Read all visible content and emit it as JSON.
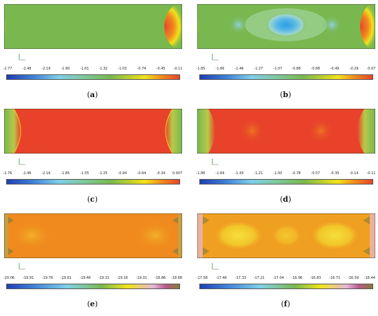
{
  "panels": [
    {
      "letter": "a",
      "ticks": [
        "-2.77",
        "-2.48",
        "-2.19",
        "-1.90",
        "-1.61",
        "-1.32",
        "-1.03",
        "-0.74",
        "-0.45",
        "-0.11"
      ],
      "colorbar": "rainbow"
    },
    {
      "letter": "b",
      "ticks": [
        "-1.85",
        "-1.66",
        "-1.46",
        "-1.27",
        "-1.07",
        "-0.88",
        "-0.68",
        "-0.49",
        "-0.29",
        "-0.07"
      ],
      "colorbar": "rainbow"
    },
    {
      "letter": "c",
      "ticks": [
        "-2.76",
        "-2.46",
        "-2.16",
        "-1.85",
        "-1.55",
        "-1.25",
        "-0.94",
        "-0.64",
        "-0.34",
        "0.007"
      ],
      "colorbar": "rainbow"
    },
    {
      "letter": "d",
      "ticks": [
        "-1.86",
        "-1.64",
        "-1.43",
        "-1.21",
        "-1.00",
        "-0.78",
        "-0.57",
        "-0.35",
        "-0.14",
        "-0.11"
      ],
      "colorbar": "rainbow"
    },
    {
      "letter": "e",
      "ticks": [
        "-20.06",
        "-19.91",
        "-19.76",
        "-19.61",
        "-19.46",
        "-19.31",
        "-19.16",
        "-19.01",
        "-18.86",
        "-18.68"
      ],
      "colorbar": "rainbow-pink"
    },
    {
      "letter": "f",
      "ticks": [
        "-17.58",
        "-17.46",
        "-17.33",
        "-17.21",
        "-17.04",
        "-16.96",
        "-16.83",
        "-16.71",
        "-16.59",
        "-16.44"
      ],
      "colorbar": "rainbow-pink"
    }
  ],
  "label_format": {
    "open": "(",
    "close": ")"
  },
  "colors": {
    "blue": "#1f3fb0",
    "cyan": "#7fd0e8",
    "green": "#79b84e",
    "yellow": "#f2e21a",
    "orange": "#f08a1e",
    "red": "#e8432a",
    "pink": "#e4b6d8",
    "olive": "#8a7a3a"
  }
}
